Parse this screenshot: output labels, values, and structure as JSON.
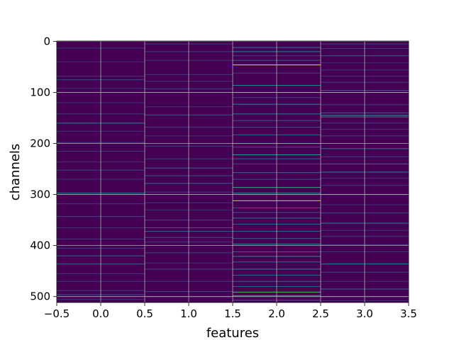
{
  "chart_data": {
    "type": "heatmap",
    "title": "",
    "xlabel": "features",
    "ylabel": "channels",
    "xlim": [
      -0.5,
      3.5
    ],
    "ylim": [
      511.5,
      -0.5
    ],
    "x_ticks": [
      -0.5,
      0.0,
      0.5,
      1.0,
      1.5,
      2.0,
      2.5,
      3.0,
      3.5
    ],
    "x_tick_labels": [
      "−0.5",
      "0.0",
      "0.5",
      "1.0",
      "1.5",
      "2.0",
      "2.5",
      "3.0",
      "3.5"
    ],
    "y_ticks": [
      0,
      100,
      200,
      300,
      400,
      500
    ],
    "y_tick_labels": [
      "0",
      "100",
      "200",
      "300",
      "400",
      "500"
    ],
    "grid": true,
    "colormap": "viridis",
    "base_color": "#440154",
    "columns": [
      {
        "feature": 0,
        "bright_rows": [
          [
            13,
            0.18
          ],
          [
            40,
            0.14
          ],
          [
            68,
            0.16
          ],
          [
            75,
            0.2
          ],
          [
            92,
            0.15
          ],
          [
            120,
            0.14
          ],
          [
            142,
            0.18
          ],
          [
            160,
            0.45
          ],
          [
            176,
            0.15
          ],
          [
            198,
            0.2
          ],
          [
            215,
            0.18
          ],
          [
            236,
            0.15
          ],
          [
            252,
            0.22
          ],
          [
            270,
            0.16
          ],
          [
            297,
            0.4
          ],
          [
            318,
            0.18
          ],
          [
            343,
            0.22
          ],
          [
            365,
            0.16
          ],
          [
            387,
            0.18
          ],
          [
            405,
            0.2
          ],
          [
            420,
            0.3
          ],
          [
            436,
            0.35
          ],
          [
            455,
            0.18
          ],
          [
            470,
            0.16
          ],
          [
            488,
            0.2
          ],
          [
            496,
            0.25
          ],
          [
            505,
            0.16
          ]
        ]
      },
      {
        "feature": 1,
        "bright_rows": [
          [
            5,
            0.18
          ],
          [
            20,
            0.2
          ],
          [
            37,
            0.16
          ],
          [
            65,
            0.18
          ],
          [
            78,
            0.15
          ],
          [
            93,
            0.22
          ],
          [
            128,
            0.15
          ],
          [
            144,
            0.3
          ],
          [
            168,
            0.2
          ],
          [
            185,
            0.15
          ],
          [
            205,
            0.2
          ],
          [
            230,
            0.18
          ],
          [
            248,
            0.3
          ],
          [
            263,
            0.25
          ],
          [
            278,
            0.35
          ],
          [
            295,
            0.2
          ],
          [
            316,
            0.18
          ],
          [
            330,
            0.15
          ],
          [
            350,
            0.22
          ],
          [
            365,
            0.28
          ],
          [
            372,
            0.3
          ],
          [
            384,
            0.25
          ],
          [
            393,
            0.2
          ],
          [
            414,
            0.22
          ],
          [
            434,
            0.15
          ],
          [
            446,
            0.2
          ],
          [
            470,
            0.18
          ],
          [
            490,
            0.22
          ],
          [
            500,
            0.16
          ]
        ]
      },
      {
        "feature": 2,
        "bright_rows": [
          [
            12,
            0.4
          ],
          [
            20,
            0.45
          ],
          [
            28,
            0.2
          ],
          [
            37,
            0.3
          ],
          [
            46,
            0.95
          ],
          [
            62,
            0.2
          ],
          [
            86,
            0.45
          ],
          [
            100,
            0.3
          ],
          [
            110,
            0.2
          ],
          [
            123,
            0.45
          ],
          [
            142,
            0.4
          ],
          [
            155,
            0.3
          ],
          [
            168,
            0.25
          ],
          [
            183,
            0.3
          ],
          [
            200,
            0.2
          ],
          [
            207,
            0.25
          ],
          [
            222,
            0.55
          ],
          [
            230,
            0.3
          ],
          [
            240,
            0.2
          ],
          [
            257,
            0.35
          ],
          [
            270,
            0.25
          ],
          [
            286,
            0.6
          ],
          [
            297,
            0.45
          ],
          [
            312,
            0.9
          ],
          [
            326,
            0.3
          ],
          [
            335,
            0.25
          ],
          [
            346,
            0.4
          ],
          [
            358,
            0.3
          ],
          [
            372,
            0.35
          ],
          [
            386,
            0.3
          ],
          [
            397,
            0.5
          ],
          [
            412,
            0.3
          ],
          [
            421,
            0.5
          ],
          [
            432,
            0.35
          ],
          [
            446,
            0.45
          ],
          [
            458,
            0.3
          ],
          [
            470,
            0.35
          ],
          [
            480,
            0.3
          ],
          [
            491,
            0.7
          ],
          [
            498,
            0.55
          ],
          [
            507,
            0.3
          ]
        ]
      },
      {
        "feature": 3,
        "bright_rows": [
          [
            5,
            0.2
          ],
          [
            14,
            0.18
          ],
          [
            28,
            0.3
          ],
          [
            42,
            0.15
          ],
          [
            56,
            0.18
          ],
          [
            68,
            0.15
          ],
          [
            80,
            0.2
          ],
          [
            96,
            0.35
          ],
          [
            100,
            0.25
          ],
          [
            124,
            0.2
          ],
          [
            140,
            0.3
          ],
          [
            145,
            0.55
          ],
          [
            148,
            0.45
          ],
          [
            160,
            0.2
          ],
          [
            172,
            0.18
          ],
          [
            185,
            0.2
          ],
          [
            210,
            0.4
          ],
          [
            226,
            0.2
          ],
          [
            240,
            0.35
          ],
          [
            256,
            0.45
          ],
          [
            268,
            0.15
          ],
          [
            282,
            0.2
          ],
          [
            300,
            0.2
          ],
          [
            320,
            0.15
          ],
          [
            336,
            0.25
          ],
          [
            356,
            0.45
          ],
          [
            370,
            0.18
          ],
          [
            382,
            0.2
          ],
          [
            398,
            0.2
          ],
          [
            412,
            0.18
          ],
          [
            436,
            0.45
          ],
          [
            452,
            0.2
          ],
          [
            470,
            0.15
          ],
          [
            485,
            0.35
          ],
          [
            500,
            0.2
          ],
          [
            508,
            0.15
          ]
        ]
      }
    ]
  }
}
